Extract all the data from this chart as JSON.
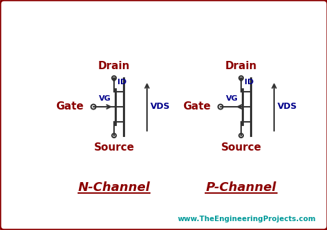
{
  "bg_color": "#ffffff",
  "border_color": "#8B0000",
  "title_color": "#8B0000",
  "label_color": "#8B0000",
  "vds_color": "#00008B",
  "vg_color": "#00008B",
  "id_color": "#00008B",
  "line_color": "#333333",
  "website_color": "#009999",
  "nchannel_label": "N-Channel",
  "pchannel_label": "P-Channel",
  "drain_label": "Drain",
  "source_label": "Source",
  "gate_label": "Gate",
  "vds_label": "VDS",
  "vg_label": "VG",
  "id_label": "ID",
  "website_label": "www.TheEngineeringProjects.com"
}
